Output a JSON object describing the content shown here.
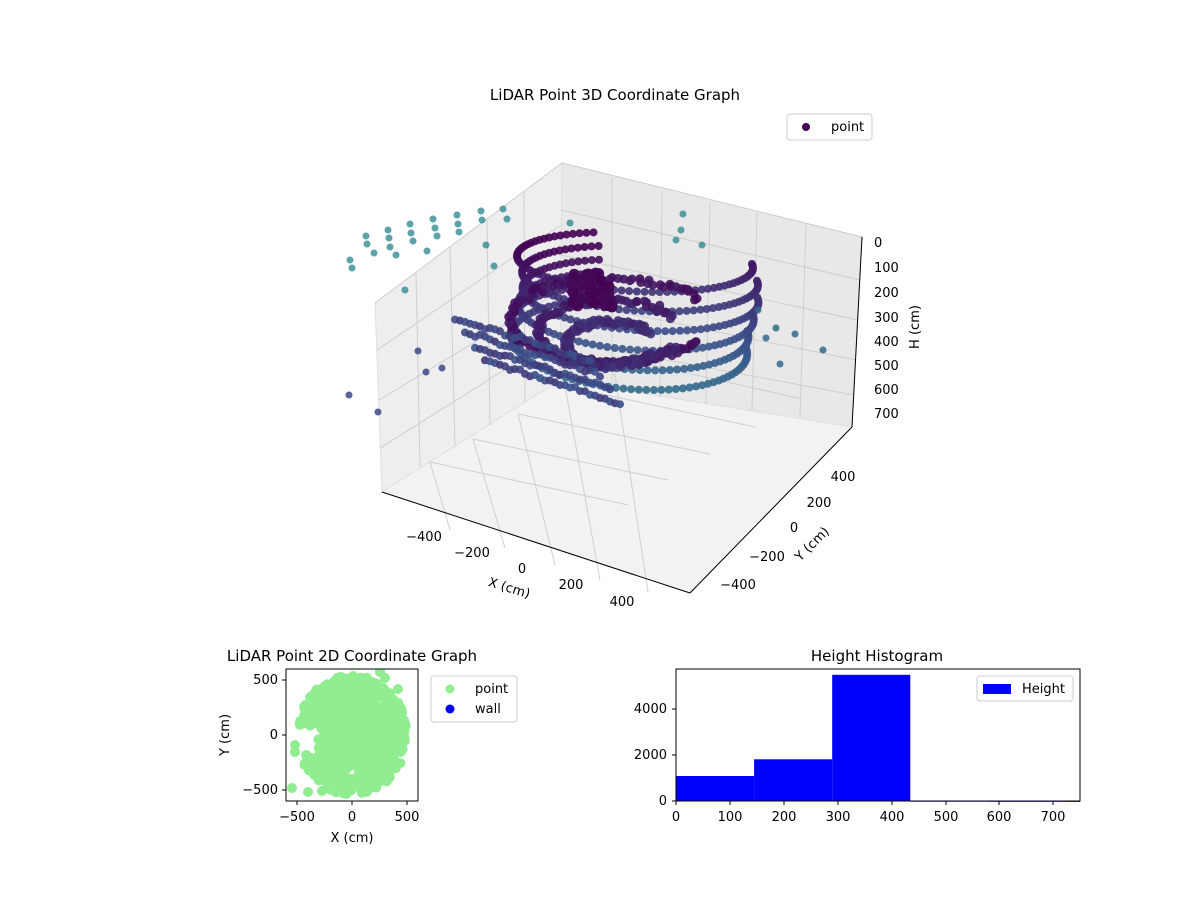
{
  "chart_data": [
    {
      "type": "scatter3d",
      "title": "LiDAR Point 3D Coordinate Graph",
      "xlabel": "X (cm)",
      "ylabel": "Y (cm)",
      "zlabel": "H (cm)",
      "xticks": [
        "−400",
        "−200",
        "0",
        "200",
        "400"
      ],
      "yticks": [
        "−400",
        "−200",
        "0",
        "200",
        "400"
      ],
      "zticks": [
        "0",
        "100",
        "200",
        "300",
        "400",
        "500",
        "600",
        "700"
      ],
      "xlim": [
        -550,
        550
      ],
      "ylim": [
        -550,
        550
      ],
      "zlim": [
        0,
        750
      ],
      "z_inverted": true,
      "legend": [
        {
          "name": "point",
          "color": "#440154"
        }
      ],
      "legend_position": "top-right",
      "colormap": "viridis",
      "grid": true
    },
    {
      "type": "scatter",
      "title": "LiDAR Point 2D Coordinate Graph",
      "xlabel": "X (cm)",
      "ylabel": "Y (cm)",
      "xticks": [
        "−500",
        "0",
        "500"
      ],
      "yticks": [
        "−500",
        "0",
        "500"
      ],
      "xlim": [
        -600,
        600
      ],
      "ylim": [
        -600,
        600
      ],
      "legend": [
        {
          "name": "point",
          "color": "#90ee90"
        },
        {
          "name": "wall",
          "color": "#0000ff"
        }
      ],
      "legend_position": "outside-right"
    },
    {
      "type": "bar",
      "title": "Height Histogram",
      "bins": [
        {
          "start": 0,
          "end": 145,
          "count": 1080
        },
        {
          "start": 145,
          "end": 290,
          "count": 1800
        },
        {
          "start": 290,
          "end": 435,
          "count": 5450
        },
        {
          "start": 435,
          "end": 580,
          "count": 15
        },
        {
          "start": 580,
          "end": 725,
          "count": 10
        },
        {
          "start": 725,
          "end": 870,
          "count": 5
        }
      ],
      "xticks": [
        "0",
        "100",
        "200",
        "300",
        "400",
        "500",
        "600",
        "700"
      ],
      "yticks": [
        "0",
        "2000",
        "4000"
      ],
      "xlim": [
        0,
        750
      ],
      "ylim": [
        0,
        5700
      ],
      "legend": [
        {
          "name": "Height",
          "color": "#0000ff"
        }
      ],
      "legend_position": "top-right",
      "grid": false
    }
  ]
}
